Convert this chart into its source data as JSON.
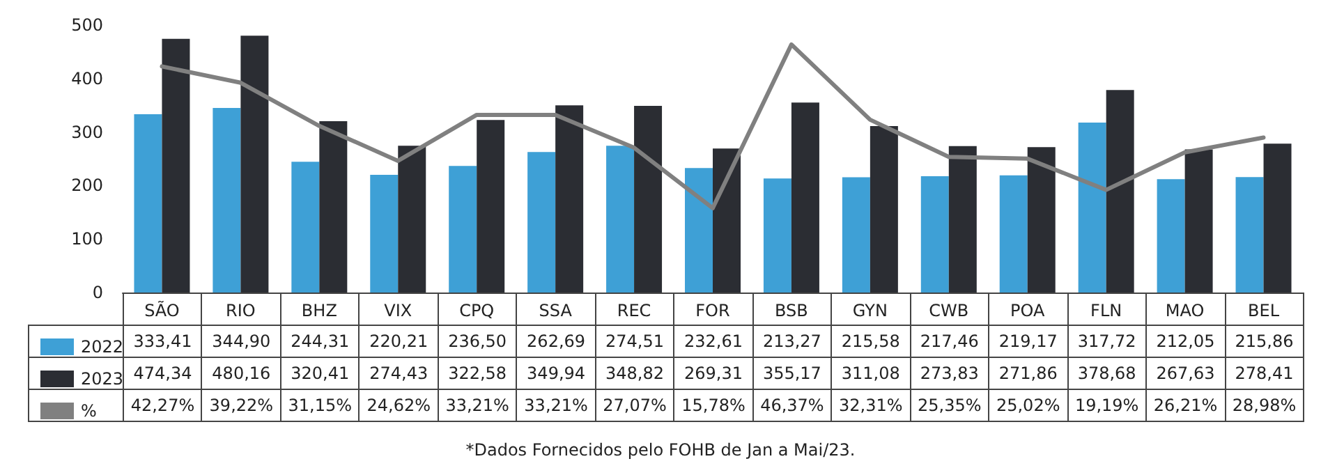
{
  "chart_data": {
    "type": "bar",
    "categories": [
      "SÃO",
      "RIO",
      "BHZ",
      "VIX",
      "CPQ",
      "SSA",
      "REC",
      "FOR",
      "BSB",
      "GYN",
      "CWB",
      "POA",
      "FLN",
      "MAO",
      "BEL"
    ],
    "series": [
      {
        "name": "2022",
        "color": "#3ea0d6",
        "values": [
          333.41,
          344.9,
          244.31,
          220.21,
          236.5,
          262.69,
          274.51,
          232.61,
          213.27,
          215.58,
          217.46,
          219.17,
          317.72,
          212.05,
          215.86
        ],
        "value_labels": [
          "333,41",
          "344,90",
          "244,31",
          "220,21",
          "236,50",
          "262,69",
          "274,51",
          "232,61",
          "213,27",
          "215,58",
          "217,46",
          "219,17",
          "317,72",
          "212,05",
          "215,86"
        ]
      },
      {
        "name": "2023",
        "color": "#2b2d33",
        "values": [
          474.34,
          480.16,
          320.41,
          274.43,
          322.58,
          349.94,
          348.82,
          269.31,
          355.17,
          311.08,
          273.83,
          271.86,
          378.68,
          267.63,
          278.41
        ],
        "value_labels": [
          "474,34",
          "480,16",
          "320,41",
          "274,43",
          "322,58",
          "349,94",
          "348,82",
          "269,31",
          "355,17",
          "311,08",
          "273,83",
          "271,86",
          "378,68",
          "267,63",
          "278,41"
        ]
      },
      {
        "name": "%",
        "type": "line",
        "axis": "y2",
        "color": "#808080",
        "values": [
          42.27,
          39.22,
          31.15,
          24.62,
          33.21,
          33.21,
          27.07,
          15.78,
          46.37,
          32.31,
          25.35,
          25.02,
          19.19,
          26.21,
          28.98
        ],
        "value_labels": [
          "42,27%",
          "39,22%",
          "31,15%",
          "24,62%",
          "33,21%",
          "33,21%",
          "27,07%",
          "15,78%",
          "46,37%",
          "32,31%",
          "25,35%",
          "25,02%",
          "19,19%",
          "26,21%",
          "28,98%"
        ]
      }
    ],
    "ylim": [
      0,
      500
    ],
    "yticks": [
      0,
      100,
      200,
      300,
      400,
      500
    ],
    "grid": false,
    "legend": "bottom left",
    "marker": "none",
    "line_style": "solid",
    "annotations": [
      "*Dados Fornecidos pelo FOHB de Jan a Mai/23."
    ]
  }
}
